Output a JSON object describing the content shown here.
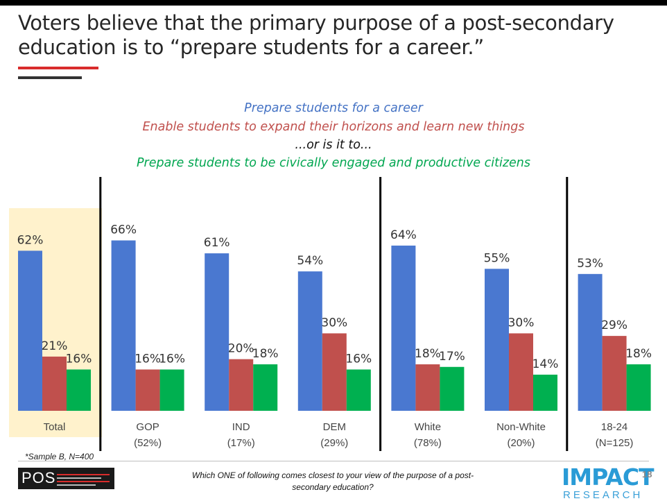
{
  "title": "Voters believe that the primary purpose of a post-secondary education is to “prepare students for a career.”",
  "subtitle": {
    "line1": "Prepare students for a career",
    "line2": "Enable students to expand their horizons and learn new things",
    "line3": "...or is it to...",
    "line4": "Prepare students to be civically engaged and productive citizens"
  },
  "colors": {
    "career": "#4a78d0",
    "horizons": "#c0504d",
    "civic": "#00b050",
    "highlight": "#fff2cc",
    "separator": "#000000"
  },
  "chart_data": {
    "type": "bar",
    "categories": [
      "Total",
      "GOP",
      "IND",
      "DEM",
      "White",
      "Non-White",
      "18-24"
    ],
    "category_sublabels": [
      "",
      "(52%)",
      "(17%)",
      "(29%)",
      "(78%)",
      "(20%)",
      "(N=125)"
    ],
    "series": [
      {
        "name": "Prepare students for a career",
        "values": [
          62,
          66,
          61,
          54,
          64,
          55,
          53
        ]
      },
      {
        "name": "Enable students to expand their horizons and learn new things",
        "values": [
          21,
          16,
          20,
          30,
          18,
          30,
          29
        ]
      },
      {
        "name": "Prepare students to be civically engaged and productive citizens",
        "values": [
          16,
          16,
          18,
          16,
          17,
          14,
          18
        ]
      }
    ],
    "unit": "%",
    "ylim": [
      0,
      72
    ],
    "highlighted_category": "Total",
    "group_separators_after": [
      "Total",
      "DEM",
      "Non-White"
    ],
    "grid": false
  },
  "footnote": "*Sample B, N=400",
  "question": "Which ONE of following comes closest to your view of the purpose of a post-secondary education?",
  "logo_left": "POS",
  "logo_right": {
    "line1": "IMPACT",
    "line2": "RESEARCH"
  },
  "page_number": "18"
}
